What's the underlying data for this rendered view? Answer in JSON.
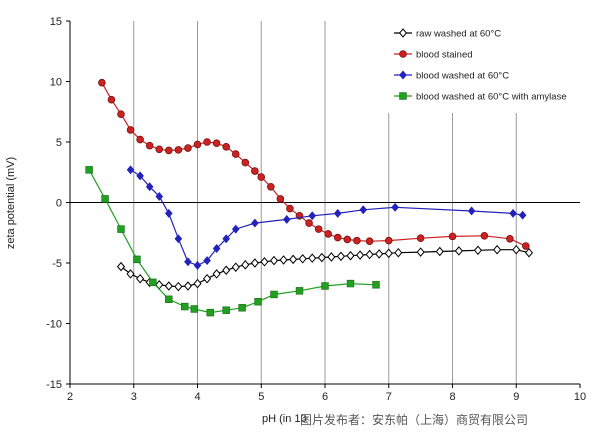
{
  "chart_data": {
    "type": "line",
    "title": "",
    "xlabel": "pH (in 10",
    "ylabel": "zeta potential (mV)",
    "xlim": [
      2,
      10
    ],
    "ylim": [
      -15,
      15
    ],
    "x_ticks": [
      2,
      3,
      4,
      5,
      6,
      7,
      8,
      9,
      10
    ],
    "y_ticks": [
      -15,
      -10,
      -5,
      0,
      5,
      10,
      15
    ],
    "grid": "vertical",
    "legend_position": "top-right",
    "series": [
      {
        "name": "raw washed at 60°C",
        "color": "#000000",
        "marker": "diamond-open",
        "x": [
          2.8,
          2.95,
          3.1,
          3.25,
          3.4,
          3.55,
          3.7,
          3.85,
          4.0,
          4.15,
          4.3,
          4.45,
          4.6,
          4.75,
          4.9,
          5.05,
          5.2,
          5.35,
          5.5,
          5.65,
          5.8,
          5.95,
          6.1,
          6.25,
          6.4,
          6.55,
          6.7,
          6.85,
          7.0,
          7.15,
          7.5,
          7.8,
          8.1,
          8.4,
          8.7,
          9.0,
          9.2
        ],
        "values": [
          -5.3,
          -5.9,
          -6.3,
          -6.6,
          -6.8,
          -6.9,
          -6.95,
          -6.9,
          -6.7,
          -6.3,
          -5.9,
          -5.6,
          -5.35,
          -5.15,
          -5.0,
          -4.9,
          -4.8,
          -4.75,
          -4.7,
          -4.65,
          -4.6,
          -4.55,
          -4.5,
          -4.45,
          -4.4,
          -4.35,
          -4.3,
          -4.25,
          -4.2,
          -4.15,
          -4.1,
          -4.05,
          -4.0,
          -3.95,
          -3.9,
          -3.9,
          -4.15
        ]
      },
      {
        "name": "blood stained",
        "color": "#cc2222",
        "marker": "circle",
        "x": [
          2.5,
          2.65,
          2.8,
          2.95,
          3.1,
          3.25,
          3.4,
          3.55,
          3.7,
          3.85,
          4.0,
          4.15,
          4.3,
          4.45,
          4.6,
          4.75,
          4.9,
          5.0,
          5.15,
          5.3,
          5.45,
          5.6,
          5.75,
          5.9,
          6.05,
          6.2,
          6.35,
          6.5,
          6.7,
          7.0,
          7.5,
          8.0,
          8.5,
          8.9,
          9.15
        ],
        "values": [
          9.9,
          8.5,
          7.3,
          6.0,
          5.2,
          4.7,
          4.4,
          4.3,
          4.35,
          4.5,
          4.8,
          5.0,
          4.9,
          4.6,
          4.0,
          3.3,
          2.6,
          2.1,
          1.3,
          0.3,
          -0.5,
          -1.1,
          -1.7,
          -2.2,
          -2.6,
          -2.9,
          -3.05,
          -3.15,
          -3.2,
          -3.15,
          -2.95,
          -2.8,
          -2.75,
          -3.0,
          -3.6
        ]
      },
      {
        "name": "blood washed at 60°C",
        "color": "#2222bb",
        "marker": "diamond",
        "x": [
          2.95,
          3.1,
          3.25,
          3.4,
          3.55,
          3.7,
          3.85,
          4.0,
          4.15,
          4.3,
          4.45,
          4.6,
          4.9,
          5.4,
          5.8,
          6.2,
          6.6,
          7.1,
          8.3,
          8.95,
          9.1
        ],
        "values": [
          2.7,
          2.2,
          1.3,
          0.5,
          -0.9,
          -3.0,
          -4.9,
          -5.2,
          -4.8,
          -3.8,
          -3.0,
          -2.2,
          -1.7,
          -1.4,
          -1.1,
          -0.9,
          -0.6,
          -0.4,
          -0.7,
          -0.9,
          -1.05
        ]
      },
      {
        "name": "blood washed at 60°C with amylase",
        "color": "#22a022",
        "marker": "square",
        "x": [
          2.3,
          2.55,
          2.8,
          3.05,
          3.3,
          3.55,
          3.8,
          3.95,
          4.2,
          4.45,
          4.7,
          4.95,
          5.2,
          5.6,
          6.0,
          6.4,
          6.8
        ],
        "values": [
          2.7,
          0.3,
          -2.2,
          -4.7,
          -6.6,
          -8.0,
          -8.6,
          -8.8,
          -9.1,
          -8.9,
          -8.7,
          -8.2,
          -7.6,
          -7.3,
          -6.9,
          -6.7,
          -6.8
        ]
      }
    ]
  },
  "watermark": "图片发布者：安东帕（上海）商贸有限公司"
}
